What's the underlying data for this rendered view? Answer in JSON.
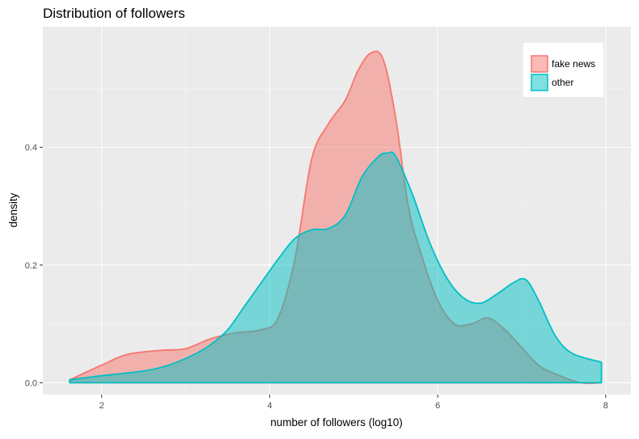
{
  "chart_data": {
    "type": "area",
    "title": "Distribution of followers",
    "xlabel": "number of followers (log10)",
    "ylabel": "density",
    "xlim": [
      1.3,
      8.3
    ],
    "ylim": [
      -0.02,
      0.605
    ],
    "x_ticks": [
      2,
      4,
      6,
      8
    ],
    "x_tick_labels": [
      "2",
      "4",
      "6",
      "8"
    ],
    "y_ticks": [
      0.0,
      0.2,
      0.4
    ],
    "y_tick_labels": [
      "0.0",
      "0.2",
      "0.4"
    ],
    "grid": true,
    "legend_position": "top-right",
    "series": [
      {
        "name": "fake news",
        "fill": "#F8766D",
        "x": [
          1.62,
          2.0,
          2.3,
          2.7,
          3.0,
          3.3,
          3.6,
          3.9,
          4.1,
          4.3,
          4.5,
          4.7,
          4.9,
          5.05,
          5.2,
          5.35,
          5.5,
          5.65,
          5.8,
          6.0,
          6.2,
          6.4,
          6.6,
          6.8,
          7.0,
          7.2,
          7.4,
          7.7,
          7.95
        ],
        "y": [
          0.005,
          0.03,
          0.048,
          0.055,
          0.058,
          0.075,
          0.085,
          0.09,
          0.11,
          0.21,
          0.38,
          0.44,
          0.48,
          0.53,
          0.56,
          0.55,
          0.45,
          0.3,
          0.22,
          0.14,
          0.1,
          0.1,
          0.11,
          0.09,
          0.06,
          0.03,
          0.015,
          0.0,
          0.0
        ]
      },
      {
        "name": "other",
        "fill": "#00BFC4",
        "x": [
          1.62,
          2.0,
          2.5,
          2.8,
          3.1,
          3.3,
          3.5,
          3.7,
          3.9,
          4.1,
          4.3,
          4.5,
          4.7,
          4.9,
          5.1,
          5.3,
          5.4,
          5.5,
          5.7,
          5.9,
          6.1,
          6.3,
          6.5,
          6.7,
          6.9,
          7.05,
          7.2,
          7.4,
          7.6,
          7.95
        ],
        "y": [
          0.005,
          0.012,
          0.02,
          0.03,
          0.048,
          0.065,
          0.09,
          0.13,
          0.17,
          0.21,
          0.245,
          0.26,
          0.262,
          0.285,
          0.35,
          0.385,
          0.39,
          0.385,
          0.32,
          0.24,
          0.18,
          0.145,
          0.135,
          0.15,
          0.17,
          0.175,
          0.14,
          0.08,
          0.05,
          0.035
        ]
      }
    ]
  }
}
